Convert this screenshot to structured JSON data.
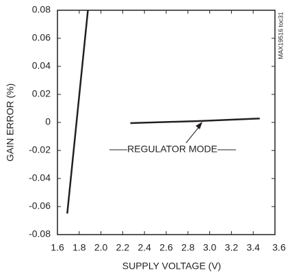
{
  "chart_data": {
    "type": "line",
    "x_label": "SUPPLY VOLTAGE (V)",
    "y_label": "GAIN ERROR (%)",
    "side_note": "MAX19516 toc31",
    "annotation": "REGULATOR MODE",
    "series": [
      {
        "color": "#231f20",
        "x": [
          1.69,
          1.88
        ],
        "values": [
          -0.065,
          0.08
        ]
      },
      {
        "color": "#231f20",
        "x": [
          2.27,
          2.9,
          3.46
        ],
        "values": [
          -0.0005,
          0.001,
          0.0028
        ]
      }
    ],
    "xlim": [
      1.6,
      3.6
    ],
    "xticks": [
      1.6,
      1.8,
      {
        "value": 2.0,
        "label": "2.0"
      },
      2.2,
      2.4,
      2.6,
      2.8,
      {
        "value": 3.0,
        "label": "3.0"
      },
      3.2,
      3.4,
      3.6
    ],
    "ylim": [
      -0.08,
      0.08
    ],
    "yticks": [
      0.08,
      0.06,
      0.04,
      0.02,
      0,
      -0.02,
      -0.04,
      -0.06,
      -0.08
    ],
    "grid": false
  }
}
